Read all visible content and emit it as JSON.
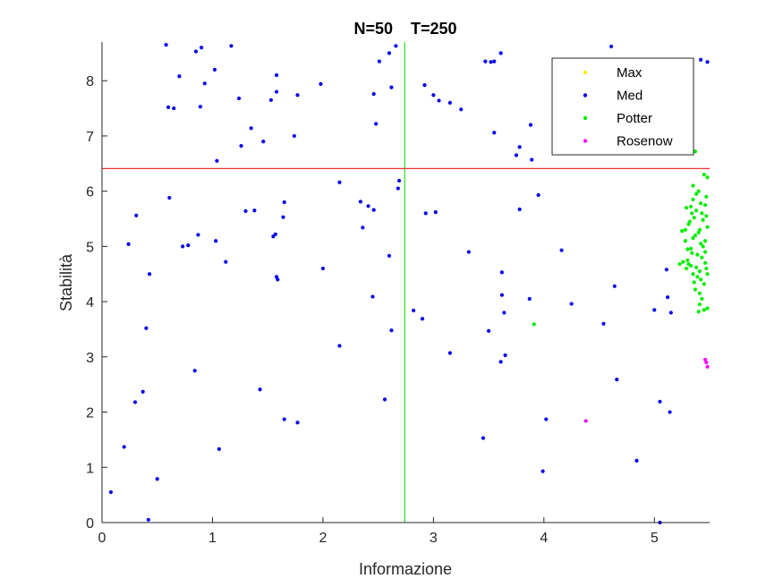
{
  "chart_data": {
    "type": "scatter",
    "title": "N=50    T=250",
    "xlabel": "Informazione",
    "ylabel": "Stabilità",
    "xlim": [
      0,
      5.5
    ],
    "ylim": [
      0,
      8.7
    ],
    "xticks": [
      "0",
      "1",
      "2",
      "3",
      "4",
      "5"
    ],
    "yticks": [
      "0",
      "1",
      "2",
      "3",
      "4",
      "5",
      "6",
      "7",
      "8"
    ],
    "grid": false,
    "legend_position": "top-right",
    "reference_lines": [
      {
        "orientation": "vertical",
        "value": 2.74,
        "color": "#22dd22"
      },
      {
        "orientation": "horizontal",
        "value": 6.41,
        "color": "#ee3333"
      }
    ],
    "series": [
      {
        "name": "Max",
        "color": "#ffee00",
        "points": []
      },
      {
        "name": "Med",
        "color": "#0000ee",
        "points": [
          [
            0.58,
            8.65
          ],
          [
            0.9,
            8.6
          ],
          [
            0.85,
            8.53
          ],
          [
            1.17,
            8.63
          ],
          [
            1.02,
            8.2
          ],
          [
            0.7,
            8.08
          ],
          [
            0.93,
            7.95
          ],
          [
            0.6,
            7.52
          ],
          [
            0.65,
            7.5
          ],
          [
            0.89,
            7.53
          ],
          [
            1.24,
            7.68
          ],
          [
            1.53,
            7.65
          ],
          [
            1.58,
            7.8
          ],
          [
            1.58,
            8.1
          ],
          [
            1.77,
            7.74
          ],
          [
            1.98,
            7.94
          ],
          [
            1.35,
            7.14
          ],
          [
            1.46,
            6.9
          ],
          [
            1.26,
            6.82
          ],
          [
            1.74,
            7.0
          ],
          [
            1.04,
            6.55
          ],
          [
            2.46,
            7.76
          ],
          [
            2.48,
            7.22
          ],
          [
            2.51,
            8.35
          ],
          [
            2.6,
            8.5
          ],
          [
            2.62,
            7.88
          ],
          [
            2.66,
            8.63
          ],
          [
            2.92,
            7.92
          ],
          [
            3.0,
            7.74
          ],
          [
            3.05,
            7.64
          ],
          [
            3.15,
            7.6
          ],
          [
            3.25,
            7.48
          ],
          [
            3.47,
            8.35
          ],
          [
            3.52,
            8.34
          ],
          [
            3.55,
            8.35
          ],
          [
            3.61,
            8.5
          ],
          [
            3.55,
            7.06
          ],
          [
            3.78,
            6.8
          ],
          [
            3.75,
            6.65
          ],
          [
            3.88,
            7.2
          ],
          [
            3.89,
            6.57
          ],
          [
            4.61,
            8.62
          ],
          [
            5.42,
            8.38
          ],
          [
            5.48,
            8.34
          ],
          [
            0.61,
            5.88
          ],
          [
            0.31,
            5.56
          ],
          [
            0.24,
            5.04
          ],
          [
            0.43,
            4.5
          ],
          [
            0.4,
            3.52
          ],
          [
            0.73,
            5.0
          ],
          [
            0.78,
            5.02
          ],
          [
            0.87,
            5.21
          ],
          [
            1.03,
            5.1
          ],
          [
            1.12,
            4.72
          ],
          [
            1.3,
            5.64
          ],
          [
            1.38,
            5.65
          ],
          [
            1.55,
            5.18
          ],
          [
            1.57,
            5.22
          ],
          [
            1.58,
            4.45
          ],
          [
            1.59,
            4.4
          ],
          [
            1.65,
            5.8
          ],
          [
            1.64,
            5.53
          ],
          [
            2.0,
            4.6
          ],
          [
            2.15,
            6.16
          ],
          [
            2.34,
            5.81
          ],
          [
            2.36,
            5.34
          ],
          [
            2.41,
            5.73
          ],
          [
            2.46,
            5.66
          ],
          [
            2.45,
            4.09
          ],
          [
            2.6,
            4.83
          ],
          [
            2.68,
            6.05
          ],
          [
            2.69,
            6.19
          ],
          [
            2.62,
            3.48
          ],
          [
            2.15,
            3.2
          ],
          [
            2.56,
            2.23
          ],
          [
            2.82,
            3.84
          ],
          [
            2.9,
            3.69
          ],
          [
            2.93,
            5.6
          ],
          [
            3.02,
            5.62
          ],
          [
            3.32,
            4.9
          ],
          [
            3.62,
            4.53
          ],
          [
            3.64,
            3.8
          ],
          [
            3.62,
            4.12
          ],
          [
            3.87,
            4.05
          ],
          [
            3.95,
            5.93
          ],
          [
            3.78,
            5.67
          ],
          [
            4.16,
            4.93
          ],
          [
            4.25,
            3.96
          ],
          [
            4.64,
            4.28
          ],
          [
            4.54,
            3.6
          ],
          [
            5.0,
            3.85
          ],
          [
            5.12,
            4.08
          ],
          [
            5.11,
            4.58
          ],
          [
            5.15,
            3.8
          ],
          [
            3.5,
            3.47
          ],
          [
            3.15,
            3.07
          ],
          [
            3.61,
            2.91
          ],
          [
            3.65,
            3.03
          ],
          [
            4.02,
            1.87
          ],
          [
            3.45,
            1.53
          ],
          [
            4.66,
            2.59
          ],
          [
            5.05,
            2.19
          ],
          [
            5.14,
            2.0
          ],
          [
            3.99,
            0.93
          ],
          [
            4.84,
            1.12
          ],
          [
            5.05,
            0.0
          ],
          [
            0.08,
            0.55
          ],
          [
            0.2,
            1.37
          ],
          [
            0.3,
            2.18
          ],
          [
            0.37,
            2.37
          ],
          [
            0.42,
            0.05
          ],
          [
            0.5,
            0.79
          ],
          [
            0.84,
            2.75
          ],
          [
            1.06,
            1.33
          ],
          [
            1.43,
            2.41
          ],
          [
            1.65,
            1.87
          ],
          [
            1.77,
            1.81
          ]
        ]
      },
      {
        "name": "Potter",
        "color": "#00ee00",
        "points": [
          [
            5.37,
            6.72
          ],
          [
            5.45,
            6.3
          ],
          [
            5.48,
            6.25
          ],
          [
            5.47,
            5.9
          ],
          [
            5.42,
            5.78
          ],
          [
            5.38,
            5.95
          ],
          [
            5.35,
            6.1
          ],
          [
            5.4,
            6.0
          ],
          [
            5.33,
            5.72
          ],
          [
            5.29,
            5.7
          ],
          [
            5.34,
            5.6
          ],
          [
            5.36,
            5.52
          ],
          [
            5.31,
            5.4
          ],
          [
            5.28,
            5.3
          ],
          [
            5.4,
            5.25
          ],
          [
            5.46,
            5.1
          ],
          [
            5.43,
            5.6
          ],
          [
            5.37,
            5.2
          ],
          [
            5.48,
            5.35
          ],
          [
            5.42,
            5.05
          ],
          [
            5.35,
            5.15
          ],
          [
            5.33,
            4.96
          ],
          [
            5.46,
            4.9
          ],
          [
            5.39,
            4.85
          ],
          [
            5.43,
            4.8
          ],
          [
            5.3,
            4.75
          ],
          [
            5.26,
            4.72
          ],
          [
            5.23,
            4.68
          ],
          [
            5.33,
            4.65
          ],
          [
            5.38,
            4.62
          ],
          [
            5.47,
            4.6
          ],
          [
            5.41,
            4.55
          ],
          [
            5.35,
            4.5
          ],
          [
            5.39,
            4.45
          ],
          [
            5.42,
            4.4
          ],
          [
            5.45,
            4.32
          ],
          [
            5.37,
            4.22
          ],
          [
            5.41,
            4.15
          ],
          [
            5.43,
            4.05
          ],
          [
            5.41,
            3.95
          ],
          [
            5.45,
            3.85
          ],
          [
            5.48,
            3.88
          ],
          [
            5.4,
            3.82
          ],
          [
            5.28,
            5.1
          ],
          [
            5.25,
            5.28
          ],
          [
            5.32,
            5.45
          ],
          [
            5.44,
            5.48
          ],
          [
            5.47,
            5.55
          ],
          [
            5.34,
            4.88
          ],
          [
            5.29,
            4.6
          ],
          [
            5.46,
            4.7
          ],
          [
            5.36,
            4.35
          ],
          [
            5.31,
            4.68
          ],
          [
            5.44,
            5.0
          ],
          [
            5.38,
            5.65
          ],
          [
            5.41,
            5.3
          ],
          [
            5.35,
            5.85
          ],
          [
            5.46,
            5.75
          ],
          [
            5.3,
            4.95
          ],
          [
            5.48,
            4.5
          ],
          [
            3.91,
            3.59
          ]
        ]
      },
      {
        "name": "Rosenow",
        "color": "#ff00ff",
        "points": [
          [
            5.46,
            2.95
          ],
          [
            5.47,
            2.9
          ],
          [
            5.48,
            2.82
          ],
          [
            4.38,
            1.84
          ]
        ]
      }
    ]
  }
}
